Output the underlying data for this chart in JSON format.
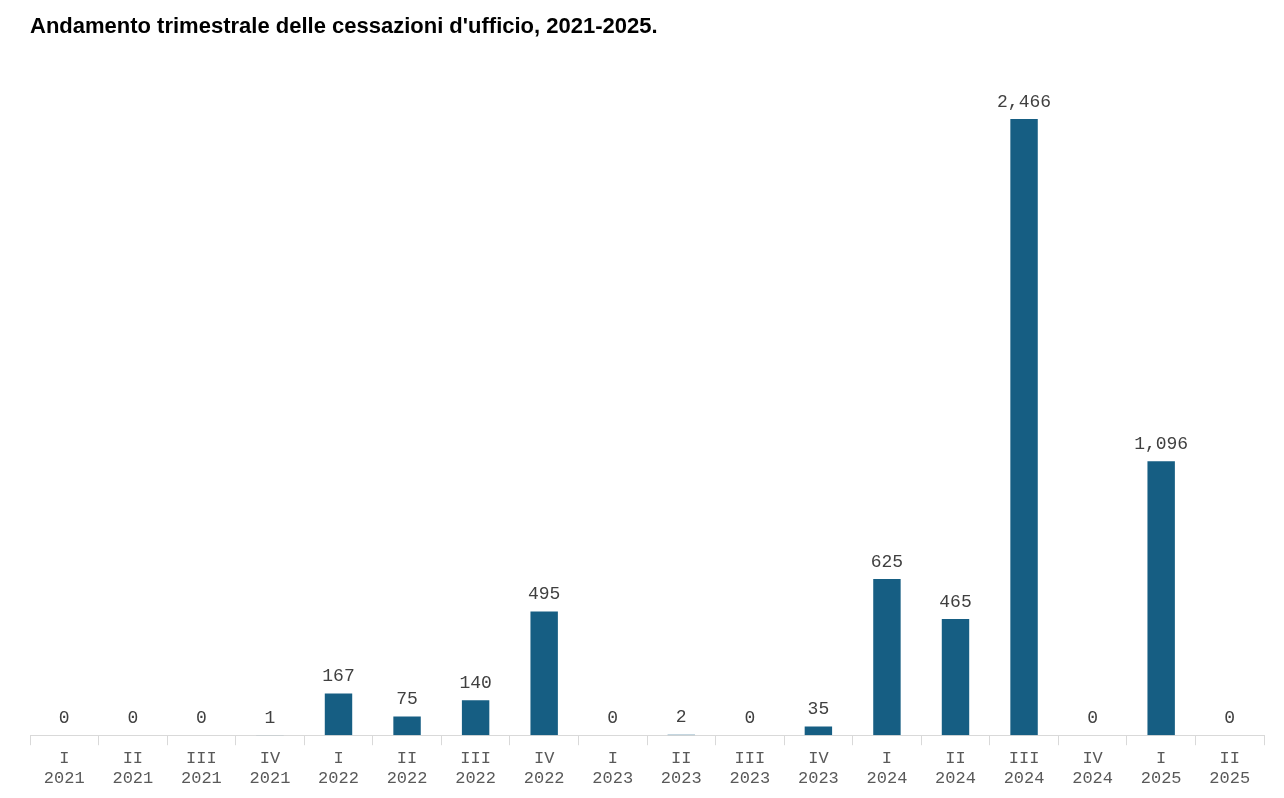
{
  "chart_data": {
    "type": "bar",
    "title": "Andamento trimestrale delle cessazioni d'ufficio, 2021-2025.",
    "categories": [
      "I 2021",
      "II 2021",
      "III 2021",
      "IV 2021",
      "I 2022",
      "II 2022",
      "III 2022",
      "IV 2022",
      "I 2023",
      "II 2023",
      "III 2023",
      "IV 2023",
      "I 2024",
      "II 2024",
      "III 2024",
      "IV 2024",
      "I 2025",
      "II 2025"
    ],
    "values": [
      0,
      0,
      0,
      1,
      167,
      75,
      140,
      495,
      0,
      2,
      0,
      35,
      625,
      465,
      2466,
      0,
      1096,
      0
    ],
    "value_labels": [
      "0",
      "0",
      "0",
      "1",
      "167",
      "75",
      "140",
      "495",
      "0",
      "2",
      "0",
      "35",
      "625",
      "465",
      "2,466",
      "0",
      "1,096",
      "0"
    ],
    "color": "#165e83",
    "tick_labels": "x",
    "grid": false,
    "legend": false
  }
}
